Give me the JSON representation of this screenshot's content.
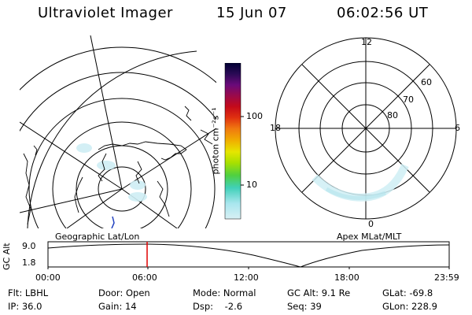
{
  "header": {
    "instrument": "Ultraviolet Imager",
    "date": "15 Jun 07",
    "time": "06:02:56 UT"
  },
  "colorbar": {
    "unit_label": "photon cm⁻²s⁻¹",
    "ticks": [
      "100",
      "10"
    ],
    "colors": [
      "#000033",
      "#2a0a55",
      "#6a0a7a",
      "#9a0a4a",
      "#c40a1a",
      "#e03010",
      "#f07810",
      "#f0b000",
      "#e6e600",
      "#a8e000",
      "#50d040",
      "#40d0b8",
      "#a8e6ee",
      "#d8f0f4"
    ]
  },
  "polar_plot": {
    "labels": {
      "top": "12",
      "left": "18",
      "right": "6",
      "bottom": "0"
    },
    "rings": [
      "80",
      "70",
      "60"
    ]
  },
  "panel_labels": {
    "left": "Geographic Lat/Lon",
    "right": "Apex MLat/MLT"
  },
  "altitude_plot": {
    "axis_title": "GC Alt",
    "y_ticks": [
      "9.0",
      "1.8"
    ],
    "x_ticks": [
      "00:00",
      "06:00",
      "12:00",
      "18:00",
      "23:59"
    ],
    "marker_color": "#e00000"
  },
  "info": {
    "row1": [
      "Flt: LBHL",
      "Door: Open",
      "Mode: Normal",
      "GC Alt: 9.1 Re",
      "GLat: -69.8"
    ],
    "row2": [
      "IP: 36.0",
      "Gain: 14",
      "Dsp:    -2.6",
      "Seq: 39",
      "GLon: 228.9"
    ]
  }
}
